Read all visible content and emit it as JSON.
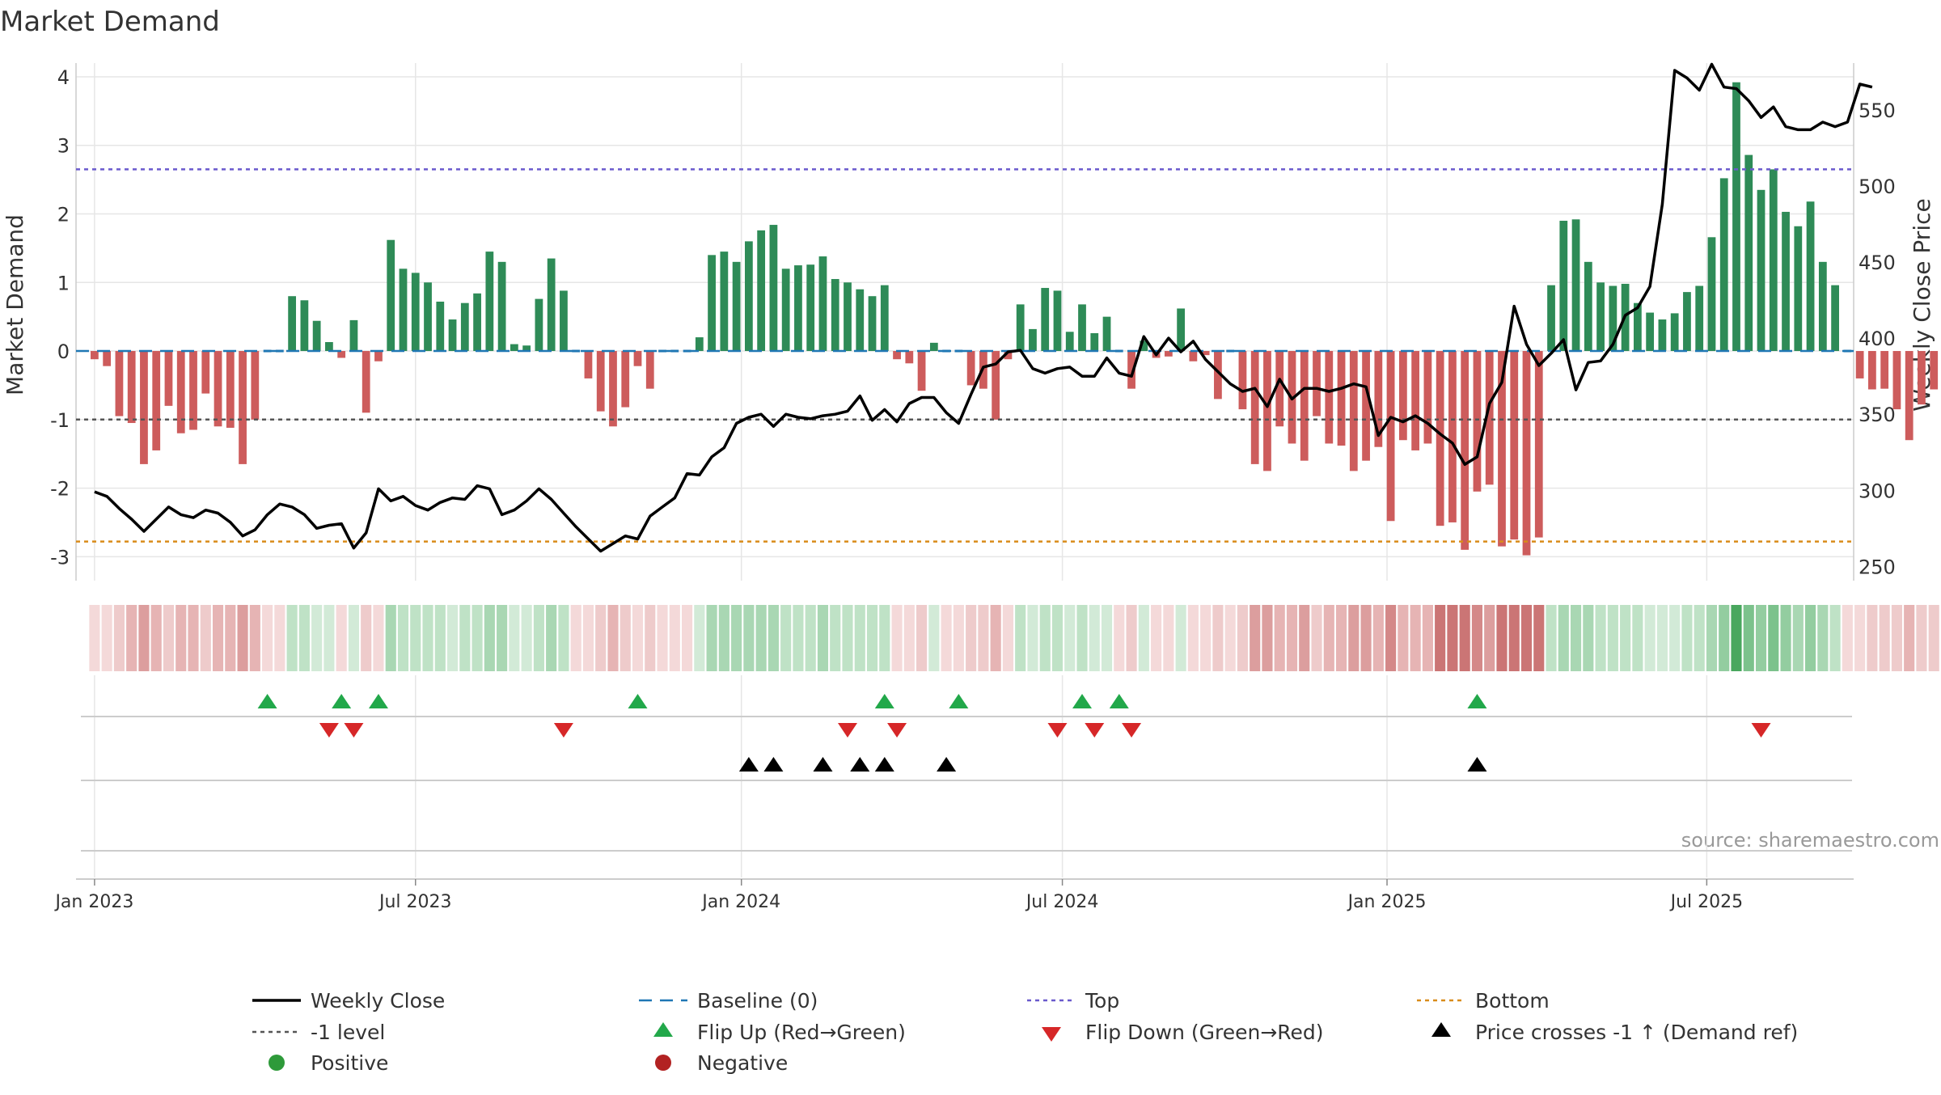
{
  "chart_data": {
    "type": "bar",
    "title": "Market Demand",
    "ylabel": "Market Demand",
    "y2label": "Weekly Close Price",
    "ylim": [
      -3.35,
      4.2
    ],
    "y2lim": [
      240.6,
      580.8
    ],
    "yticks": [
      -3,
      -2,
      -1,
      0,
      1,
      2,
      3,
      4
    ],
    "y2ticks": [
      250,
      300,
      350,
      400,
      450,
      500,
      550
    ],
    "xlim": [
      -1.5,
      142.5
    ],
    "xticks": [
      {
        "label": "Jan 2023",
        "week": 0
      },
      {
        "label": "Jul 2023",
        "week": 26
      },
      {
        "label": "Jan 2024",
        "week": 52.4
      },
      {
        "label": "Jul 2024",
        "week": 78.4
      },
      {
        "label": "Jan 2025",
        "week": 104.7
      },
      {
        "label": "Jul 2025",
        "week": 130.6
      }
    ],
    "top_level": 2.65,
    "bottom_level": -2.78,
    "minus1_level": -1,
    "source": "source: sharemaestro.com",
    "demand": [
      -0.12,
      -0.22,
      -0.95,
      -1.05,
      -1.65,
      -1.45,
      -0.8,
      -1.2,
      -1.15,
      -0.62,
      -1.1,
      -1.12,
      -1.65,
      -1.0,
      0,
      0,
      0.8,
      0.74,
      0.44,
      0.13,
      -0.1,
      0.45,
      -0.9,
      -0.15,
      1.62,
      1.2,
      1.14,
      1.0,
      0.72,
      0.46,
      0.7,
      0.84,
      1.45,
      1.3,
      0.1,
      0.08,
      0.76,
      1.35,
      0.88,
      0,
      -0.4,
      -0.88,
      -1.1,
      -0.82,
      -0.22,
      -0.55,
      0,
      0,
      0,
      0.2,
      1.4,
      1.45,
      1.3,
      1.6,
      1.76,
      1.84,
      1.2,
      1.25,
      1.26,
      1.38,
      1.05,
      1.0,
      0.9,
      0.8,
      0.96,
      -0.12,
      -0.18,
      -0.58,
      0.12,
      0,
      0,
      -0.5,
      -0.55,
      -1.0,
      -0.12,
      0.68,
      0.32,
      0.92,
      0.88,
      0.28,
      0.68,
      0.26,
      0.5,
      0,
      -0.55,
      0.15,
      -0.1,
      -0.08,
      0.62,
      -0.15,
      -0.06,
      -0.7,
      0,
      -0.85,
      -1.65,
      -1.75,
      -1.1,
      -1.35,
      -1.6,
      -0.95,
      -1.35,
      -1.38,
      -1.75,
      -1.6,
      -1.4,
      -2.48,
      -1.3,
      -1.45,
      -1.35,
      -2.55,
      -2.5,
      -2.9,
      -2.05,
      -1.95,
      -2.85,
      -2.75,
      -2.98,
      -2.72,
      0.96,
      1.9,
      1.92,
      1.3,
      1.0,
      0.95,
      0.98,
      0.7,
      0.56,
      0.46,
      0.55,
      0.86,
      0.95,
      1.66,
      2.52,
      3.92,
      2.86,
      2.35,
      2.65,
      2.03,
      1.82,
      2.18,
      1.3,
      0.96,
      0,
      -0.4,
      -0.56,
      -0.55,
      -0.85,
      -1.3,
      -0.78,
      -0.56
    ],
    "close": [
      299,
      296,
      288,
      281,
      273,
      281,
      289,
      284,
      282,
      287,
      285,
      279,
      270,
      274,
      284,
      291,
      289,
      284,
      275,
      277,
      278,
      262,
      272,
      301,
      293,
      296,
      290,
      287,
      292,
      295,
      294,
      303,
      301,
      284,
      287,
      293,
      301,
      294,
      285,
      276,
      268,
      260,
      265,
      270,
      268,
      283,
      289,
      295,
      311,
      310,
      322,
      328,
      344,
      348,
      350,
      342,
      350,
      348,
      347,
      349,
      350,
      352,
      362,
      346,
      353,
      345,
      357,
      361,
      361,
      351,
      344,
      363,
      381,
      383,
      391,
      392,
      380,
      377,
      380,
      381,
      375,
      375,
      387,
      377,
      375,
      401,
      389,
      400,
      391,
      398,
      386,
      378,
      370,
      365,
      367,
      355,
      373,
      360,
      367,
      367,
      365,
      367,
      370,
      368,
      336,
      348,
      345,
      349,
      344,
      337,
      331,
      317,
      322,
      357,
      371,
      421,
      396,
      382,
      390,
      399,
      366,
      384,
      385,
      396,
      415,
      420,
      434,
      488,
      576,
      571,
      563,
      580,
      565,
      564,
      556,
      545,
      552,
      539,
      537,
      537,
      542,
      539,
      542,
      567,
      565
    ],
    "flip_up_weeks": [
      14,
      20,
      23,
      44,
      64,
      70,
      80,
      83,
      112
    ],
    "flip_down_weeks": [
      19,
      21,
      38,
      61,
      65,
      78,
      81,
      84,
      135
    ],
    "cross_weeks": [
      53,
      55,
      59,
      62,
      64,
      69,
      112
    ],
    "strip_colors": {
      "pos": [
        "#d2ead7",
        "#bfe2c6",
        "#a9d7b3",
        "#93cda0",
        "#7cc28c",
        "#49a75e"
      ],
      "neg": [
        "#f4d9d9",
        "#eecbcb",
        "#e6b4b4",
        "#dc9e9e",
        "#d48989",
        "#cb7575"
      ]
    },
    "legend": [
      {
        "label": "Weekly Close",
        "marker": "line-black"
      },
      {
        "label": "Baseline (0)",
        "marker": "dash-blue"
      },
      {
        "label": "Top",
        "marker": "dot-purple"
      },
      {
        "label": "Bottom",
        "marker": "dot-orange"
      },
      {
        "label": "-1 level",
        "marker": "dot-gray"
      },
      {
        "label": "Flip Up (Red→Green)",
        "marker": "triangle-up-green"
      },
      {
        "label": "Flip Down (Green→Red)",
        "marker": "triangle-down-red"
      },
      {
        "label": "Price crosses -1 ↑ (Demand ref)",
        "marker": "triangle-up-black"
      },
      {
        "label": "Positive",
        "marker": "circle-green"
      },
      {
        "label": "Negative",
        "marker": "circle-red"
      }
    ],
    "colors": {
      "positive_bar": "#2e8b57",
      "negative_bar": "#cd5c5c",
      "close_line": "#000000",
      "baseline": "#1f77b4",
      "top": "#6a5acd",
      "bottom": "#d98c1a",
      "minus1": "#555555",
      "flip_up": "#22a84a",
      "flip_down": "#d62728",
      "cross": "#000000",
      "positive_dot": "#2e9a3a",
      "negative_dot": "#b22222",
      "grid": "#e6e6e6",
      "axis": "#cccccc",
      "text": "#333333",
      "source": "#999999"
    }
  }
}
